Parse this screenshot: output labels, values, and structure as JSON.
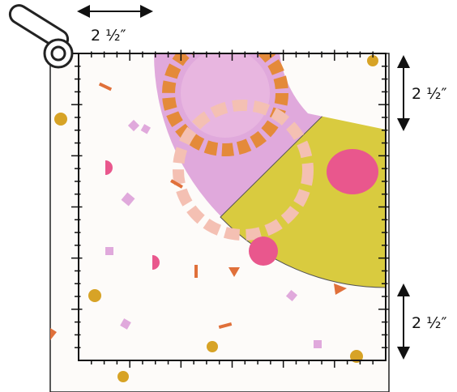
{
  "labels": {
    "top": "2 ½″",
    "right_top": "2 ½″",
    "right_bottom": "2 ½″"
  }
}
